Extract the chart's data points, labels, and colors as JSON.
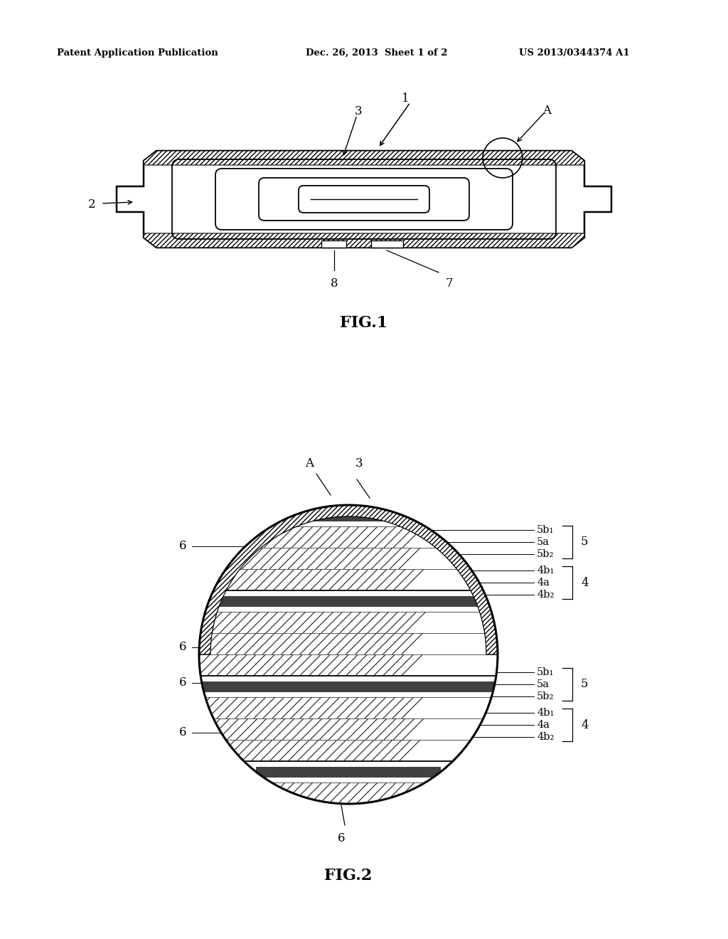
{
  "background_color": "#ffffff",
  "header_left": "Patent Application Publication",
  "header_center": "Dec. 26, 2013  Sheet 1 of 2",
  "header_right": "US 2013/0344374 A1",
  "fig1_label": "FIG.1",
  "fig2_label": "FIG.2",
  "line_color": "#000000",
  "page_width": 10.24,
  "page_height": 13.2,
  "dpi": 100
}
